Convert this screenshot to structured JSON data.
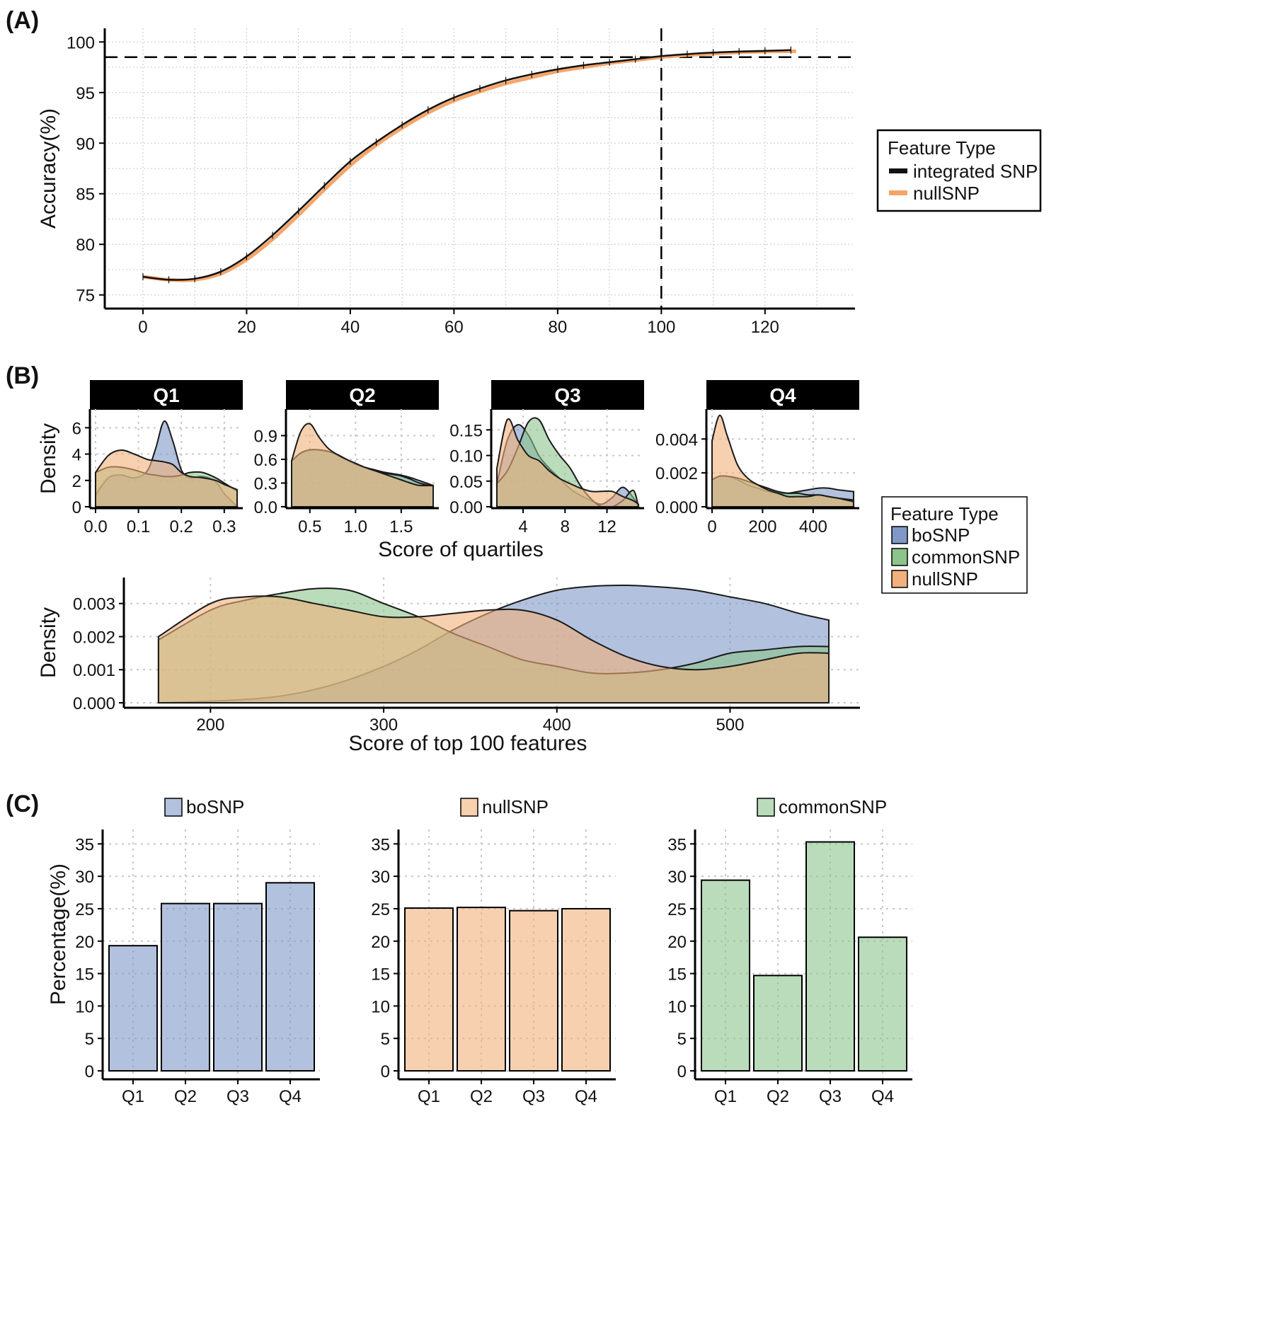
{
  "colors": {
    "integrated": "#111111",
    "nullLine": "#f4a66a",
    "bo": "#7f98c6",
    "common": "#8cc48c",
    "null": "#f2b07c",
    "grid": "#c8c8c8",
    "strip": "#000000"
  },
  "chart_data": [
    {
      "panel": "(A)",
      "type": "line",
      "xlabel": "",
      "ylabel": "Accuracy(%)",
      "xlim": [
        -6,
        136
      ],
      "ylim": [
        74,
        101
      ],
      "xticks": [
        0,
        20,
        40,
        60,
        80,
        100,
        120
      ],
      "yticks": [
        75,
        80,
        85,
        90,
        95,
        100
      ],
      "hline": 98.5,
      "vline": 100,
      "legend": {
        "title": "Feature Type",
        "items": [
          "integrated SNP",
          "nullSNP"
        ]
      },
      "series": [
        {
          "name": "integrated SNP",
          "x": [
            0,
            5,
            10,
            15,
            20,
            25,
            30,
            35,
            40,
            45,
            50,
            55,
            60,
            65,
            70,
            75,
            80,
            85,
            90,
            95,
            100,
            105,
            110,
            115,
            120,
            125
          ],
          "y": [
            76.8,
            76.5,
            76.6,
            77.3,
            78.8,
            80.9,
            83.3,
            85.8,
            88.2,
            90.1,
            91.8,
            93.3,
            94.5,
            95.4,
            96.2,
            96.8,
            97.3,
            97.7,
            98.0,
            98.3,
            98.6,
            98.8,
            98.95,
            99.05,
            99.12,
            99.2
          ]
        },
        {
          "name": "nullSNP",
          "x": [
            0,
            5,
            10,
            15,
            20,
            25,
            30,
            35,
            40,
            45,
            50,
            55,
            60,
            65,
            70,
            75,
            80,
            85,
            90,
            95,
            100,
            105,
            110,
            115,
            120,
            126
          ],
          "y": [
            76.8,
            76.5,
            76.5,
            77.1,
            78.5,
            80.5,
            82.9,
            85.4,
            87.8,
            89.8,
            91.5,
            93.0,
            94.2,
            95.1,
            95.9,
            96.5,
            97.1,
            97.5,
            97.9,
            98.2,
            98.5,
            98.7,
            98.85,
            98.97,
            99.05,
            99.1
          ]
        }
      ]
    },
    {
      "panel": "(B)",
      "type": "area",
      "subtype": "density-facets",
      "ylabel": "Density",
      "xlabel": "Score of quartiles",
      "legend": {
        "title": "Feature Type",
        "items": [
          "boSNP",
          "commonSNP",
          "nullSNP"
        ]
      },
      "facets": [
        {
          "label": "Q1",
          "xlim": [
            0,
            0.33
          ],
          "ylim": [
            0,
            7.2
          ],
          "xticks": [
            "0.0",
            "0.1",
            "0.2",
            "0.3"
          ],
          "yticks": [
            "0",
            "2",
            "4",
            "6"
          ],
          "x": [
            0.0,
            0.03,
            0.06,
            0.09,
            0.12,
            0.14,
            0.16,
            0.18,
            0.2,
            0.22,
            0.25,
            0.28,
            0.3,
            0.33
          ],
          "series": [
            {
              "name": "boSNP",
              "values": [
                0.9,
                2.2,
                2.4,
                2.2,
                2.7,
                4.4,
                6.5,
                5.0,
                2.8,
                2.2,
                2.3,
                1.9,
                1.0,
                0.0
              ]
            },
            {
              "name": "commonSNP",
              "values": [
                2.6,
                3.0,
                3.0,
                2.8,
                2.5,
                2.4,
                2.3,
                2.3,
                2.4,
                2.6,
                2.6,
                2.2,
                1.8,
                1.2
              ]
            },
            {
              "name": "nullSNP",
              "values": [
                2.6,
                3.9,
                4.3,
                4.0,
                3.6,
                3.5,
                3.4,
                3.2,
                2.6,
                2.3,
                2.2,
                2.0,
                1.7,
                1.3
              ]
            }
          ]
        },
        {
          "label": "Q2",
          "xlim": [
            0.3,
            1.85
          ],
          "ylim": [
            0,
            1.2
          ],
          "xticks": [
            "0.5",
            "1.0",
            "1.5"
          ],
          "yticks": [
            "0.0",
            "0.3",
            "0.6",
            "0.9"
          ],
          "x": [
            0.3,
            0.4,
            0.5,
            0.6,
            0.7,
            0.8,
            0.9,
            1.0,
            1.1,
            1.2,
            1.3,
            1.4,
            1.5,
            1.6,
            1.7,
            1.85
          ],
          "series": [
            {
              "name": "boSNP",
              "values": [
                0.58,
                0.68,
                0.72,
                0.72,
                0.7,
                0.66,
                0.6,
                0.54,
                0.5,
                0.47,
                0.44,
                0.42,
                0.4,
                0.37,
                0.33,
                0.27
              ]
            },
            {
              "name": "commonSNP",
              "values": [
                0.58,
                0.68,
                0.72,
                0.72,
                0.7,
                0.66,
                0.6,
                0.54,
                0.5,
                0.46,
                0.43,
                0.41,
                0.39,
                0.35,
                0.3,
                0.26
              ]
            },
            {
              "name": "nullSNP",
              "values": [
                0.58,
                0.95,
                1.05,
                0.88,
                0.74,
                0.66,
                0.6,
                0.55,
                0.5,
                0.46,
                0.42,
                0.38,
                0.34,
                0.3,
                0.27,
                0.27
              ]
            }
          ]
        },
        {
          "label": "Q3",
          "xlim": [
            1.5,
            15
          ],
          "ylim": [
            0,
            0.185
          ],
          "xticks": [
            "4",
            "8",
            "12"
          ],
          "yticks": [
            "0.00",
            "0.05",
            "0.10",
            "0.15"
          ],
          "x": [
            1.5,
            2.5,
            3.5,
            4.5,
            5.5,
            6.5,
            7.5,
            8.5,
            9.5,
            10.5,
            11.5,
            12.5,
            13.5,
            14.5,
            15
          ],
          "series": [
            {
              "name": "boSNP",
              "values": [
                0.045,
                0.13,
                0.16,
                0.14,
                0.1,
                0.075,
                0.055,
                0.035,
                0.022,
                0.012,
                0.005,
                0.018,
                0.038,
                0.018,
                0.0
              ]
            },
            {
              "name": "commonSNP",
              "values": [
                0.045,
                0.07,
                0.115,
                0.165,
                0.17,
                0.13,
                0.1,
                0.075,
                0.04,
                0.015,
                0.0,
                0.0,
                0.012,
                0.032,
                0.0
              ]
            },
            {
              "name": "nullSNP",
              "values": [
                0.075,
                0.17,
                0.13,
                0.1,
                0.09,
                0.07,
                0.055,
                0.045,
                0.036,
                0.03,
                0.03,
                0.03,
                0.02,
                0.012,
                0.005
              ]
            }
          ]
        },
        {
          "label": "Q4",
          "xlim": [
            0,
            560
          ],
          "ylim": [
            0,
            0.0056
          ],
          "xticks": [
            "0",
            "200",
            "400"
          ],
          "yticks": [
            "0.000",
            "0.002",
            "0.004"
          ],
          "x": [
            0,
            30,
            60,
            100,
            140,
            180,
            220,
            260,
            300,
            340,
            380,
            420,
            460,
            500,
            560
          ],
          "series": [
            {
              "name": "boSNP",
              "values": [
                0.0016,
                0.0018,
                0.0018,
                0.0016,
                0.0013,
                0.0011,
                0.0009,
                0.0008,
                0.0008,
                0.0009,
                0.001,
                0.0011,
                0.0011,
                0.001,
                0.0009
              ]
            },
            {
              "name": "commonSNP",
              "values": [
                0.0016,
                0.0018,
                0.0018,
                0.0017,
                0.0015,
                0.0013,
                0.0011,
                0.0009,
                0.0008,
                0.0008,
                0.0007,
                0.0007,
                0.0006,
                0.0005,
                0.0004
              ]
            },
            {
              "name": "nullSNP",
              "values": [
                0.0039,
                0.0054,
                0.0042,
                0.0025,
                0.0017,
                0.0013,
                0.001,
                0.0008,
                0.0006,
                0.0006,
                0.0006,
                0.0007,
                0.0006,
                0.0005,
                0.0003
              ]
            }
          ]
        }
      ],
      "overall": {
        "xlabel": "Score of top 100 features",
        "ylabel": "Density",
        "xlim": [
          150,
          575
        ],
        "ylim": [
          0,
          0.0037
        ],
        "xticks": [
          "200",
          "300",
          "400",
          "500"
        ],
        "yticks": [
          "0.000",
          "0.001",
          "0.002",
          "0.003"
        ],
        "x": [
          170,
          200,
          220,
          240,
          260,
          280,
          300,
          320,
          340,
          360,
          380,
          400,
          420,
          440,
          460,
          480,
          500,
          520,
          540,
          557
        ],
        "series": [
          {
            "name": "boSNP",
            "values": [
              0.0,
              5e-05,
              0.0001,
              0.0002,
              0.0004,
              0.0007,
              0.0011,
              0.0016,
              0.0022,
              0.0027,
              0.0031,
              0.0034,
              0.00352,
              0.00355,
              0.0035,
              0.0034,
              0.0032,
              0.003,
              0.0027,
              0.0025
            ]
          },
          {
            "name": "commonSNP",
            "values": [
              0.0019,
              0.0028,
              0.0031,
              0.0033,
              0.00345,
              0.0034,
              0.003,
              0.0026,
              0.0021,
              0.0017,
              0.0013,
              0.0011,
              0.0009,
              0.0009,
              0.001,
              0.0012,
              0.0015,
              0.0016,
              0.0017,
              0.0017
            ]
          },
          {
            "name": "nullSNP",
            "values": [
              0.002,
              0.003,
              0.0032,
              0.0032,
              0.003,
              0.0028,
              0.0026,
              0.0026,
              0.0027,
              0.0028,
              0.0028,
              0.0025,
              0.0019,
              0.0014,
              0.0011,
              0.001,
              0.0011,
              0.0013,
              0.0015,
              0.0015
            ]
          }
        ]
      }
    },
    {
      "panel": "(C)",
      "type": "bar",
      "ylabel": "Percentage(%)",
      "ylim": [
        0,
        37
      ],
      "yticks": [
        0,
        5,
        10,
        15,
        20,
        25,
        30,
        35
      ],
      "categories": [
        "Q1",
        "Q2",
        "Q3",
        "Q4"
      ],
      "series": [
        {
          "name": "boSNP",
          "values": [
            19.3,
            25.8,
            25.8,
            29.0
          ]
        },
        {
          "name": "nullSNP",
          "values": [
            25.1,
            25.2,
            24.7,
            25.0
          ]
        },
        {
          "name": "commonSNP",
          "values": [
            29.4,
            14.7,
            35.3,
            20.6
          ]
        }
      ]
    }
  ]
}
